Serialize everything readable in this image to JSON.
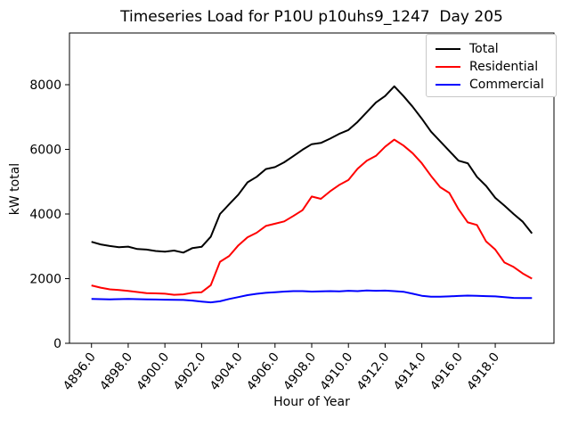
{
  "title": "Timeseries Load for P10U p10uhs9_1247  Day 205",
  "chart_data": {
    "type": "line",
    "title": "Timeseries Load for P10U p10uhs9_1247  Day 205",
    "xlabel": "Hour of Year",
    "ylabel": "kW total",
    "xlim": [
      4894.8,
      4921.2
    ],
    "ylim": [
      0,
      9600
    ],
    "grid": false,
    "legend_position": "upper right",
    "x_tick_values": [
      4896,
      4898,
      4900,
      4902,
      4904,
      4906,
      4908,
      4910,
      4912,
      4914,
      4916,
      4918
    ],
    "x_tick_labels": [
      "4896.0",
      "4898.0",
      "4900.0",
      "4902.0",
      "4904.0",
      "4906.0",
      "4908.0",
      "4910.0",
      "4912.0",
      "4914.0",
      "4916.0",
      "4918.0"
    ],
    "y_tick_values": [
      0,
      2000,
      4000,
      6000,
      8000
    ],
    "y_tick_labels": [
      "0",
      "2000",
      "4000",
      "6000",
      "8000"
    ],
    "x": [
      4896.0,
      4896.5,
      4897.0,
      4897.5,
      4898.0,
      4898.5,
      4899.0,
      4899.5,
      4900.0,
      4900.5,
      4901.0,
      4901.5,
      4902.0,
      4902.5,
      4903.0,
      4903.5,
      4904.0,
      4904.5,
      4905.0,
      4905.5,
      4906.0,
      4906.5,
      4907.0,
      4907.5,
      4908.0,
      4908.5,
      4909.0,
      4909.5,
      4910.0,
      4910.5,
      4911.0,
      4911.5,
      4912.0,
      4912.5,
      4913.0,
      4913.5,
      4914.0,
      4914.5,
      4915.0,
      4915.5,
      4916.0,
      4916.5,
      4917.0,
      4917.5,
      4918.0,
      4918.5,
      4919.0,
      4919.5,
      4920.0
    ],
    "series": [
      {
        "name": "Total",
        "color": "#000000",
        "values": [
          3140,
          3060,
          3010,
          2970,
          2990,
          2915,
          2900,
          2855,
          2835,
          2870,
          2805,
          2945,
          2985,
          3300,
          4000,
          4300,
          4600,
          4980,
          5150,
          5390,
          5450,
          5600,
          5790,
          5990,
          6160,
          6200,
          6330,
          6480,
          6600,
          6850,
          7150,
          7450,
          7650,
          7950,
          7650,
          7320,
          6950,
          6550,
          6250,
          5950,
          5650,
          5570,
          5150,
          4870,
          4500,
          4260,
          4000,
          3760,
          3400
        ]
      },
      {
        "name": "Residential",
        "color": "#ff0000",
        "values": [
          1790,
          1720,
          1670,
          1650,
          1620,
          1585,
          1550,
          1545,
          1535,
          1500,
          1515,
          1565,
          1580,
          1800,
          2520,
          2700,
          3030,
          3280,
          3420,
          3630,
          3700,
          3770,
          3940,
          4120,
          4540,
          4470,
          4700,
          4900,
          5050,
          5400,
          5650,
          5800,
          6080,
          6300,
          6120,
          5880,
          5570,
          5180,
          4830,
          4650,
          4150,
          3740,
          3660,
          3150,
          2900,
          2500,
          2360,
          2160,
          2000
        ]
      },
      {
        "name": "Commercial",
        "color": "#0000ff",
        "values": [
          1370,
          1365,
          1360,
          1365,
          1370,
          1365,
          1360,
          1355,
          1350,
          1345,
          1340,
          1320,
          1290,
          1265,
          1300,
          1370,
          1430,
          1490,
          1530,
          1560,
          1580,
          1600,
          1615,
          1615,
          1600,
          1605,
          1615,
          1605,
          1625,
          1615,
          1635,
          1625,
          1630,
          1615,
          1595,
          1535,
          1470,
          1440,
          1440,
          1450,
          1465,
          1475,
          1470,
          1460,
          1450,
          1425,
          1405,
          1400,
          1400
        ]
      }
    ]
  }
}
